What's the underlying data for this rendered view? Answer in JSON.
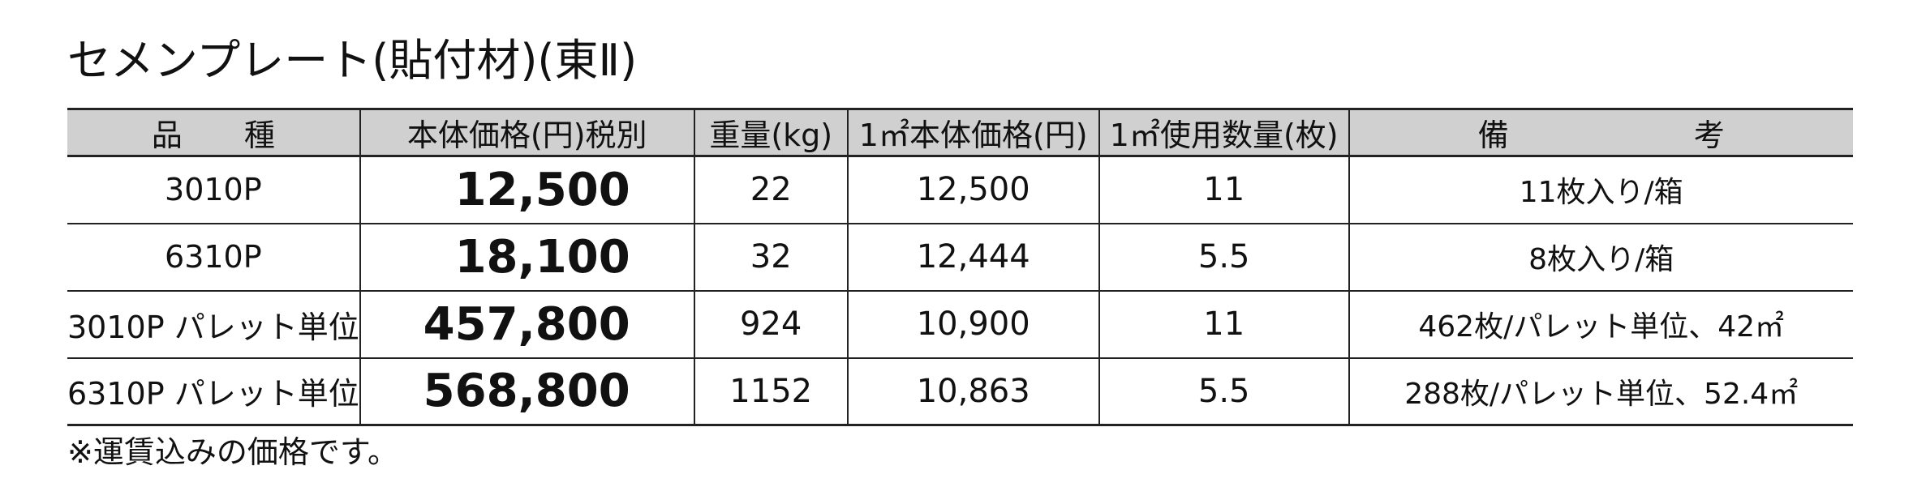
{
  "title": "セメンプレート(貼付材)(東Ⅱ)",
  "table": {
    "headers": [
      "品　　種",
      "本体価格(円)税別",
      "重量(kg)",
      "1㎡本体価格(円)",
      "1㎡使用数量(枚)",
      "備　　　　　　考"
    ],
    "rows": [
      [
        "3010P",
        "12,500",
        "22",
        "12,500",
        "11",
        "11枚入り/箱"
      ],
      [
        "6310P",
        "18,100",
        "32",
        "12,444",
        "5.5",
        "8枚入り/箱"
      ],
      [
        "3010P パレット単位",
        "457,800",
        "924",
        "10,900",
        "11",
        "462枚/パレット単位、42㎡"
      ],
      [
        "6310P パレット単位",
        "568,800",
        "1152",
        "10,863",
        "5.5",
        "288枚/パレット単位、52.4㎡"
      ]
    ]
  },
  "note": "※運賃込みの価格です。"
}
